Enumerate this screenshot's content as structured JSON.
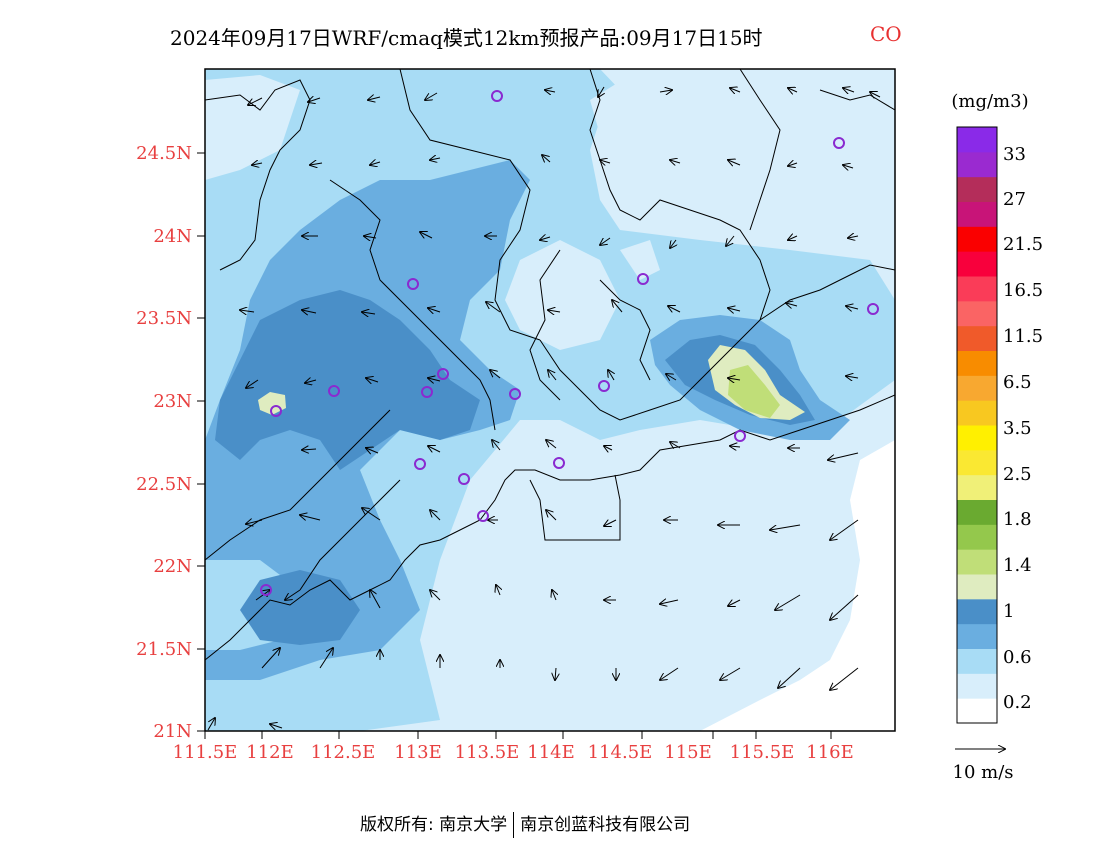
{
  "title": {
    "main": "2024年09月17日WRF/cmaq模式12km预报产品:09月17日15时",
    "species": "CO"
  },
  "map": {
    "lat_ticks": [
      "24.5N",
      "24N",
      "23.5N",
      "23N",
      "22.5N",
      "22N",
      "21.5N",
      "21N"
    ],
    "lon_ticks": [
      "111.5E",
      "112E",
      "112.5E",
      "113E",
      "113.5E",
      "114E",
      "114.5E",
      "115E",
      "115.5E",
      "116E"
    ],
    "label_color": "#e84040"
  },
  "colorbar": {
    "unit": "(mg/m3)",
    "labels": [
      "33",
      "27",
      "21.5",
      "16.5",
      "11.5",
      "6.5",
      "3.5",
      "2.5",
      "1.8",
      "1.4",
      "1",
      "0.6",
      "0.2"
    ],
    "colors": [
      "#ffffff",
      "#d8eefb",
      "#a8dcf5",
      "#6aaee0",
      "#4a8fc8",
      "#dfecc0",
      "#c0de78",
      "#94c84c",
      "#6aaa30",
      "#f0f078",
      "#fae832",
      "#fff000",
      "#f8c820",
      "#f8a830",
      "#f88c00",
      "#f05a2a",
      "#fa6464",
      "#fa3c58",
      "#f8003c",
      "#fa0000",
      "#c81478",
      "#b42d5a",
      "#9a2ad0",
      "#8a2ae8"
    ]
  },
  "wind_legend": {
    "label": "10 m/s"
  },
  "footer": {
    "left": "版权所有: 南京大学",
    "right": "南京创蓝科技有限公司"
  }
}
